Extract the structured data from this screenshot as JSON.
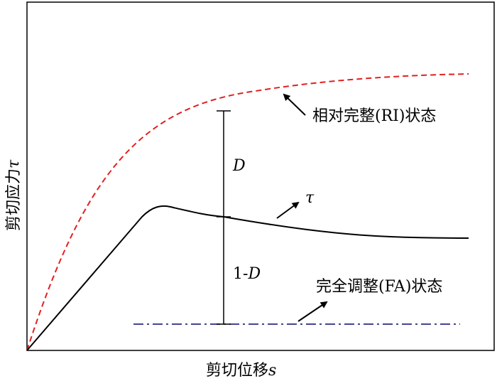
{
  "axes": {
    "y_label": "剪切应力",
    "y_symbol": "τ",
    "x_label": "剪切位移",
    "x_symbol": "s"
  },
  "curves": {
    "ri": {
      "label": "相对完整(RI)状态",
      "color": "#e02020",
      "style": "dashed"
    },
    "tau": {
      "label": "τ",
      "color": "#000000",
      "style": "solid"
    },
    "fa": {
      "label": "完全调整(FA)状态",
      "color": "#2a2a80",
      "style": "dash-dot"
    }
  },
  "markers": {
    "upper_segment": {
      "symbol": "D"
    },
    "lower_segment": {
      "prefix": "1-",
      "symbol": "D"
    }
  }
}
